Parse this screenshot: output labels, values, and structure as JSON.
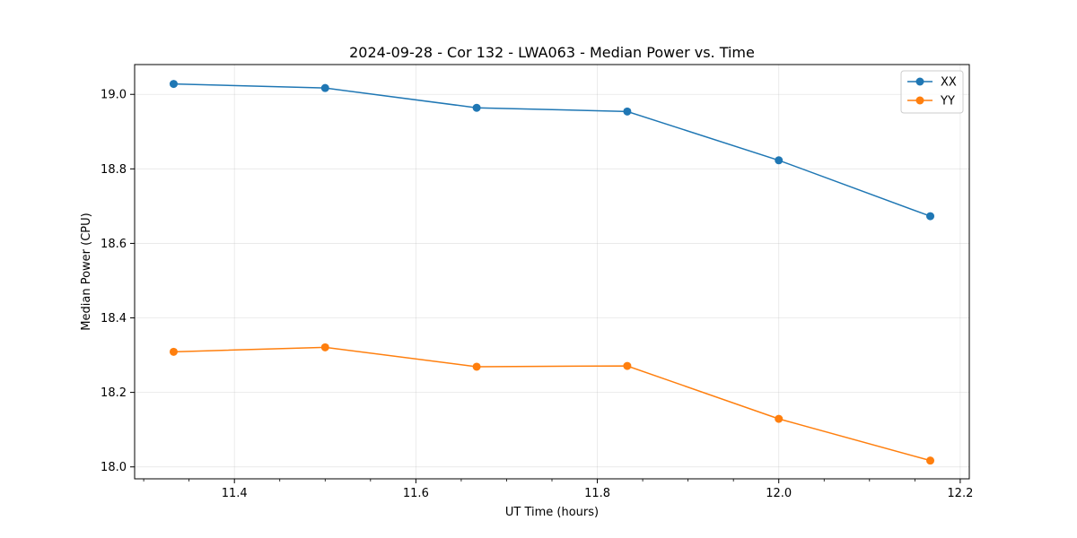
{
  "chart_data": {
    "type": "line",
    "title": "2024-09-28 - Cor 132 - LWA063 - Median Power vs. Time",
    "xlabel": "UT Time (hours)",
    "ylabel": "Median Power (CPU)",
    "x": [
      11.333,
      11.5,
      11.667,
      11.833,
      12.0,
      12.167
    ],
    "xlim": [
      11.29,
      12.21
    ],
    "ylim": [
      17.968,
      19.08
    ],
    "xticks": [
      11.4,
      11.6,
      11.8,
      12.0,
      12.2
    ],
    "xtick_labels": [
      "11.4",
      "11.6",
      "11.8",
      "12.0",
      "12.2"
    ],
    "yticks": [
      18.0,
      18.2,
      18.4,
      18.6,
      18.8,
      19.0
    ],
    "ytick_labels": [
      "18.0",
      "18.2",
      "18.4",
      "18.6",
      "18.8",
      "19.0"
    ],
    "grid": true,
    "legend_position": "top-right",
    "series": [
      {
        "name": "XX",
        "color": "#1f77b4",
        "marker": "circle",
        "values": [
          19.028,
          19.017,
          18.964,
          18.954,
          18.823,
          18.673
        ]
      },
      {
        "name": "YY",
        "color": "#ff7f0e",
        "marker": "circle",
        "values": [
          18.309,
          18.321,
          18.269,
          18.271,
          18.129,
          18.017
        ]
      }
    ]
  }
}
